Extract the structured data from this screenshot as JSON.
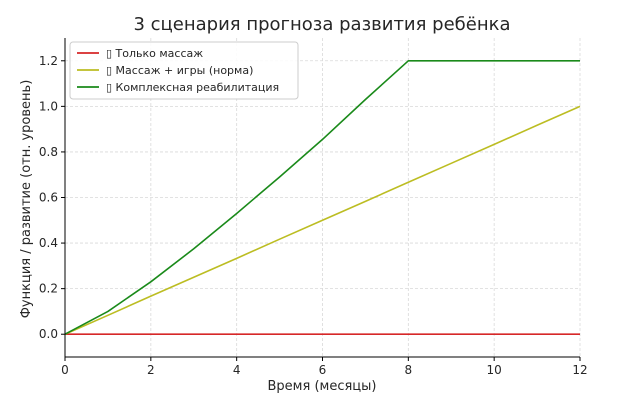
{
  "chart_data": {
    "type": "line",
    "title": "3 сценария прогноза развития ребёнка",
    "xlabel": "Время (месяцы)",
    "ylabel": "Функция / развитие (отн. уровень)",
    "xlim": [
      0,
      12
    ],
    "ylim": [
      -0.1,
      1.3
    ],
    "xticks": [
      0,
      2,
      4,
      6,
      8,
      10,
      12
    ],
    "yticks": [
      0.0,
      0.2,
      0.4,
      0.6,
      0.8,
      1.0,
      1.2
    ],
    "xtick_labels": [
      "0",
      "2",
      "4",
      "6",
      "8",
      "10",
      "12"
    ],
    "ytick_labels": [
      "0.0",
      "0.2",
      "0.4",
      "0.6",
      "0.8",
      "1.0",
      "1.2"
    ],
    "grid": true,
    "legend_position": "top-left",
    "series": [
      {
        "name": "▯ Только массаж",
        "color": "#d62728",
        "x": [
          0,
          1,
          2,
          3,
          4,
          5,
          6,
          7,
          8,
          9,
          10,
          11,
          12
        ],
        "y": [
          0,
          0,
          0,
          0,
          0,
          0,
          0,
          0,
          0,
          0,
          0,
          0,
          0
        ]
      },
      {
        "name": "▯ Массаж + игры (норма)",
        "color": "#bcbd22",
        "x": [
          0,
          1,
          2,
          3,
          4,
          5,
          6,
          7,
          8,
          9,
          10,
          11,
          12
        ],
        "y": [
          0,
          0.083,
          0.167,
          0.25,
          0.333,
          0.417,
          0.5,
          0.583,
          0.667,
          0.75,
          0.833,
          0.917,
          1.0
        ]
      },
      {
        "name": "▯ Комплексная реабилитация",
        "color": "#1a8a1a",
        "x": [
          0,
          1,
          2,
          3,
          4,
          5,
          6,
          7,
          8,
          9,
          10,
          11,
          12
        ],
        "y": [
          0,
          0.1,
          0.23,
          0.375,
          0.53,
          0.69,
          0.855,
          1.03,
          1.2,
          1.2,
          1.2,
          1.2,
          1.2
        ]
      }
    ]
  }
}
